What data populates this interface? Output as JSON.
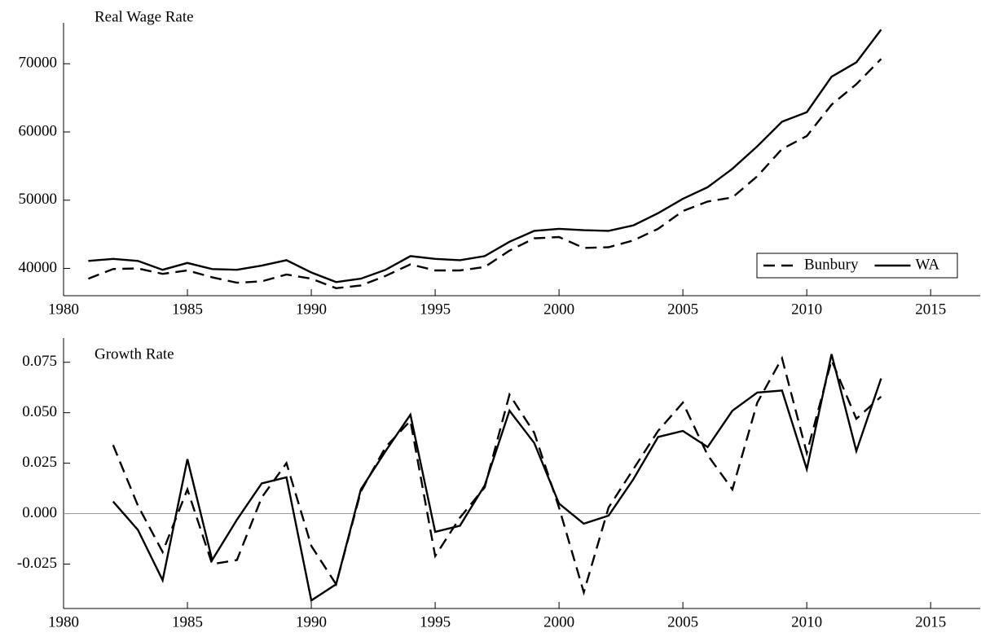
{
  "chart_data": [
    {
      "type": "line",
      "title": "Real Wage Rate",
      "x": [
        1981,
        1982,
        1983,
        1984,
        1985,
        1986,
        1987,
        1988,
        1989,
        1990,
        1991,
        1992,
        1993,
        1994,
        1995,
        1996,
        1997,
        1998,
        1999,
        2000,
        2001,
        2002,
        2003,
        2004,
        2005,
        2006,
        2007,
        2008,
        2009,
        2010,
        2011,
        2012,
        2013
      ],
      "series": [
        {
          "name": "Bunbury",
          "color": "#000000",
          "linestyle": "dashed",
          "values": [
            38500,
            39900,
            40000,
            39200,
            39700,
            38700,
            37900,
            38100,
            39100,
            38500,
            37100,
            37500,
            38900,
            40600,
            39700,
            39700,
            40200,
            42600,
            44400,
            44600,
            43000,
            43100,
            44100,
            45800,
            48400,
            49800,
            50400,
            53500,
            57500,
            59400,
            64000,
            67000,
            70700
          ]
        },
        {
          "name": "WA",
          "color": "#000000",
          "linestyle": "solid",
          "values": [
            41100,
            41400,
            41100,
            39800,
            40800,
            39900,
            39800,
            40400,
            41200,
            39400,
            38000,
            38500,
            39800,
            41800,
            41400,
            41200,
            41800,
            43900,
            45500,
            45800,
            45600,
            45500,
            46300,
            48100,
            50200,
            51900,
            54600,
            57900,
            61500,
            62900,
            68100,
            70200,
            75000
          ]
        }
      ],
      "xlim": [
        1980,
        2017
      ],
      "xticks": [
        1980,
        1985,
        1990,
        1995,
        2000,
        2005,
        2010,
        2015
      ],
      "ylim": [
        36000,
        76000
      ],
      "yticks": [
        40000,
        50000,
        60000,
        70000
      ],
      "legend": "lower right"
    },
    {
      "type": "line",
      "title": "Growth Rate",
      "x": [
        1982,
        1983,
        1984,
        1985,
        1986,
        1987,
        1988,
        1989,
        1990,
        1991,
        1992,
        1993,
        1994,
        1995,
        1996,
        1997,
        1998,
        1999,
        2000,
        2001,
        2002,
        2003,
        2004,
        2005,
        2006,
        2007,
        2008,
        2009,
        2010,
        2011,
        2012,
        2013
      ],
      "series": [
        {
          "name": "Bunbury",
          "color": "#000000",
          "linestyle": "dashed",
          "values": [
            0.034,
            0.004,
            -0.019,
            0.012,
            -0.025,
            -0.023,
            0.008,
            0.025,
            -0.016,
            -0.035,
            0.011,
            0.033,
            0.046,
            -0.021,
            -0.002,
            0.013,
            0.059,
            0.04,
            0.003,
            -0.039,
            0.003,
            0.022,
            0.041,
            0.055,
            0.029,
            0.012,
            0.055,
            0.077,
            0.03,
            0.076,
            0.047,
            0.058
          ]
        },
        {
          "name": "WA",
          "color": "#000000",
          "linestyle": "solid",
          "values": [
            0.006,
            -0.008,
            -0.033,
            0.027,
            -0.023,
            -0.003,
            0.015,
            0.018,
            -0.043,
            -0.035,
            0.012,
            0.031,
            0.049,
            -0.009,
            -0.006,
            0.014,
            0.051,
            0.035,
            0.005,
            -0.005,
            -0.001,
            0.017,
            0.038,
            0.041,
            0.033,
            0.051,
            0.06,
            0.061,
            0.022,
            0.079,
            0.031,
            0.067
          ]
        }
      ],
      "xlim": [
        1980,
        2017
      ],
      "xticks": [
        1980,
        1985,
        1990,
        1995,
        2000,
        2005,
        2010,
        2015
      ],
      "ylim": [
        -0.047,
        0.087
      ],
      "yticks": [
        {
          "value": -0.025,
          "label": "-0.025"
        },
        {
          "value": 0,
          "label": "0.000"
        },
        {
          "value": 0.025,
          "label": "0.025"
        },
        {
          "value": 0.05,
          "label": "0.050"
        },
        0.075
      ],
      "hline": 0
    }
  ]
}
